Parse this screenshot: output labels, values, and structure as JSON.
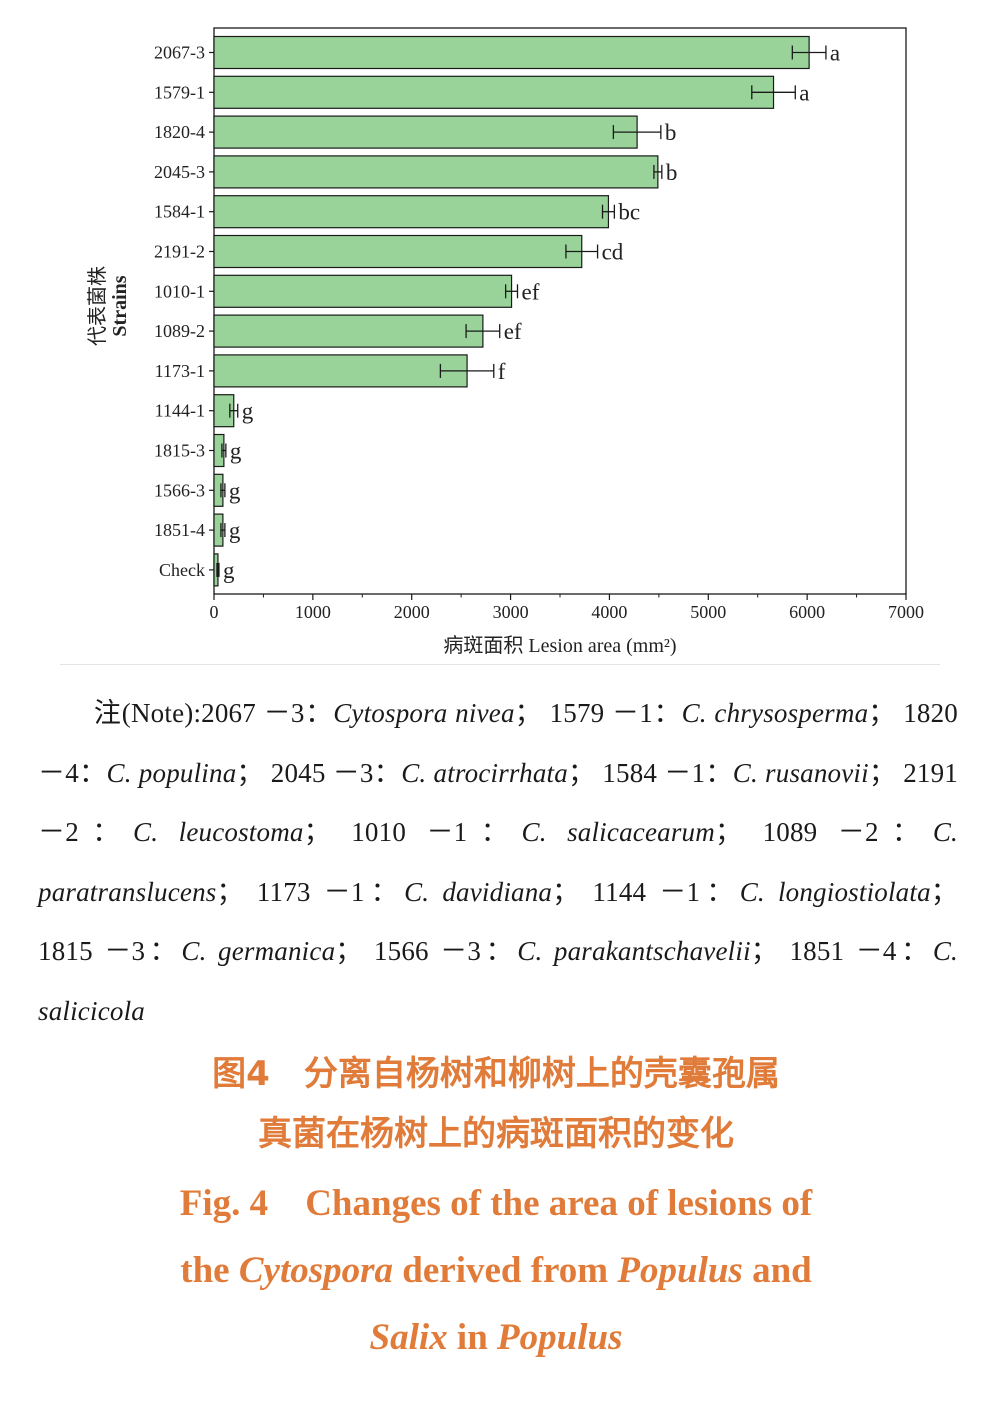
{
  "chart_data": {
    "type": "bar",
    "orientation": "horizontal",
    "categories": [
      "2067-3",
      "1579-1",
      "1820-4",
      "2045-3",
      "1584-1",
      "2191-2",
      "1010-1",
      "1089-2",
      "1173-1",
      "1144-1",
      "1815-3",
      "1566-3",
      "1851-4",
      "Check"
    ],
    "values": [
      6020,
      5660,
      4280,
      4490,
      3990,
      3720,
      3010,
      2720,
      2560,
      200,
      100,
      90,
      90,
      40
    ],
    "errors": [
      170,
      220,
      240,
      40,
      60,
      160,
      60,
      170,
      270,
      40,
      20,
      20,
      20,
      10
    ],
    "significance": [
      "a",
      "a",
      "b",
      "b",
      "bc",
      "cd",
      "ef",
      "ef",
      "f",
      "g",
      "g",
      "g",
      "g",
      "g"
    ],
    "xlim": [
      0,
      7000
    ],
    "xticks": [
      "0",
      "1000",
      "2000",
      "3000",
      "4000",
      "5000",
      "6000",
      "7000"
    ],
    "xlabel": "病斑面积 Lesion area (mm²)",
    "ylabel_cn": "代表菌株",
    "ylabel_en": "Strains",
    "bar_color": "#99d39a",
    "bar_edge_color": "#1a1a1a"
  },
  "note": {
    "prefix": "注(Note):",
    "entries": [
      {
        "id": "2067 －3",
        "name": "Cytospora nivea"
      },
      {
        "id": "1579 －1",
        "name": "C. chrysosperma"
      },
      {
        "id": "1820 －4",
        "name": "C. populina"
      },
      {
        "id": "2045 －3",
        "name": "C. atrocirrhata"
      },
      {
        "id": "1584 －1",
        "name": "C. rusanovii"
      },
      {
        "id": "2191 －2",
        "name": "C. leucostoma"
      },
      {
        "id": "1010 －1",
        "name": "C. salicacearum"
      },
      {
        "id": "1089 －2",
        "name": "C. paratranslucens"
      },
      {
        "id": "1173 －1",
        "name": "C. davidiana"
      },
      {
        "id": "1144 －1",
        "name": "C. longiostiolata"
      },
      {
        "id": "1815 －3",
        "name": "C. germanica"
      },
      {
        "id": "1566 －3",
        "name": "C. parakantschavelii"
      },
      {
        "id": "1851 －4",
        "name": "C. salicicola"
      }
    ]
  },
  "caption_cn": {
    "line1": "图4　分离自杨树和柳树上的壳囊孢属",
    "line2": "真菌在杨树上的病斑面积的变化"
  },
  "caption_en": {
    "fig": "Fig. 4",
    "line1": "Changes of the area of lesions of",
    "line2_a": "the",
    "line2_genus": "Cytospora",
    "line2_b": "derived from",
    "line2_host1": "Populus",
    "line2_c": "and",
    "line3_host2": "Salix",
    "line3_a": "in",
    "line3_host3": "Populus"
  },
  "colors": {
    "caption": "#e07b39"
  }
}
